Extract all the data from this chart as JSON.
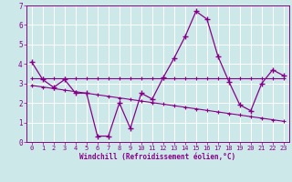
{
  "xlabel": "Windchill (Refroidissement éolien,°C)",
  "bg_color": "#cce8e8",
  "line_color": "#880088",
  "grid_color": "#ffffff",
  "xlim": [
    -0.5,
    23.5
  ],
  "ylim": [
    0,
    7
  ],
  "yticks": [
    0,
    1,
    2,
    3,
    4,
    5,
    6,
    7
  ],
  "xticks": [
    0,
    1,
    2,
    3,
    4,
    5,
    6,
    7,
    8,
    9,
    10,
    11,
    12,
    13,
    14,
    15,
    16,
    17,
    18,
    19,
    20,
    21,
    22,
    23
  ],
  "main_x": [
    0,
    1,
    2,
    3,
    4,
    5,
    6,
    7,
    8,
    9,
    10,
    11,
    12,
    13,
    14,
    15,
    16,
    17,
    18,
    19,
    20,
    21,
    22,
    23
  ],
  "main_y": [
    4.1,
    3.2,
    2.8,
    3.2,
    2.5,
    2.5,
    0.3,
    0.3,
    2.0,
    0.7,
    2.5,
    2.2,
    3.3,
    4.3,
    5.4,
    6.7,
    6.3,
    4.4,
    3.1,
    1.9,
    1.6,
    3.0,
    3.7,
    3.4
  ],
  "trend1_x": [
    0,
    1,
    2,
    3,
    4,
    5,
    6,
    7,
    8,
    9,
    10,
    11,
    12,
    13,
    14,
    15,
    16,
    17,
    18,
    19,
    20,
    21,
    22,
    23
  ],
  "trend1_y": [
    3.25,
    3.25,
    3.25,
    3.25,
    3.25,
    3.25,
    3.25,
    3.25,
    3.25,
    3.25,
    3.25,
    3.25,
    3.25,
    3.25,
    3.25,
    3.25,
    3.25,
    3.25,
    3.25,
    3.25,
    3.25,
    3.25,
    3.25,
    3.25
  ],
  "trend2_x": [
    0,
    1,
    2,
    3,
    4,
    5,
    6,
    7,
    8,
    9,
    10,
    11,
    12,
    13,
    14,
    15,
    16,
    17,
    18,
    19,
    20,
    21,
    22,
    23
  ],
  "trend2_y": [
    2.9,
    2.82,
    2.74,
    2.66,
    2.58,
    2.5,
    2.42,
    2.34,
    2.26,
    2.18,
    2.1,
    2.02,
    1.94,
    1.86,
    1.78,
    1.7,
    1.62,
    1.54,
    1.46,
    1.38,
    1.3,
    1.22,
    1.14,
    1.06
  ],
  "tick_fontsize": 5.0,
  "xlabel_fontsize": 5.5
}
